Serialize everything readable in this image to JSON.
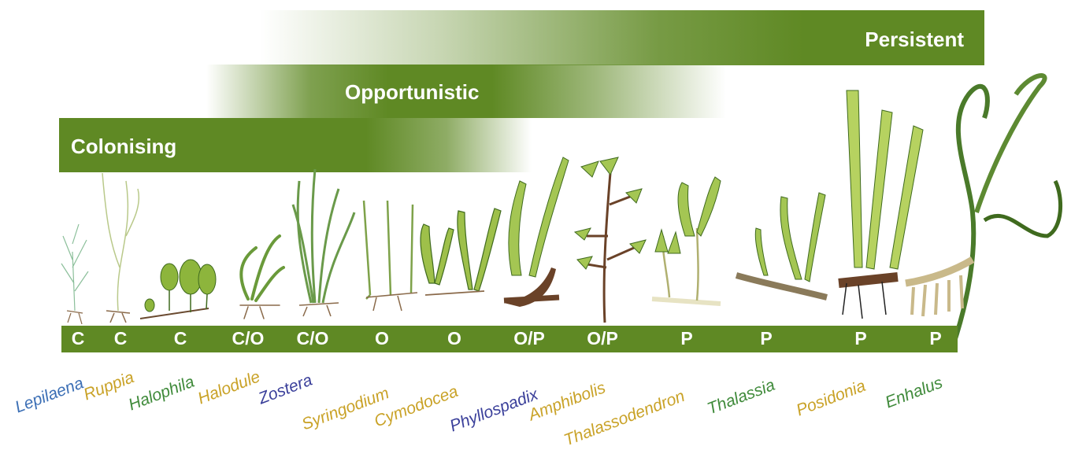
{
  "bands": {
    "persistent": "Persistent",
    "opportunistic": "Opportunistic",
    "colonising": "Colonising"
  },
  "colors": {
    "band_green": "#5f8924",
    "genus_blue": "#3c6fb5",
    "genus_gold": "#c9a227",
    "genus_green": "#3f8a3a",
    "genus_indigo": "#3a3f9a"
  },
  "genera": [
    {
      "code": "C",
      "name": "Lepilaena"
    },
    {
      "code": "C",
      "name": "Ruppia"
    },
    {
      "code": "C",
      "name": "Halophila"
    },
    {
      "code": "C/O",
      "name": "Halodule"
    },
    {
      "code": "C/O",
      "name": "Zostera"
    },
    {
      "code": "O",
      "name": "Syringodium"
    },
    {
      "code": "O",
      "name": "Cymodocea"
    },
    {
      "code": "O/P",
      "name": "Phyllospadix"
    },
    {
      "code": "O/P",
      "name": "Amphibolis"
    },
    {
      "code": "P",
      "name": "Thalassodendron"
    },
    {
      "code": "P",
      "name": "Thalassia"
    },
    {
      "code": "P",
      "name": "Posidonia"
    },
    {
      "code": "P",
      "name": "Enhalus"
    }
  ]
}
